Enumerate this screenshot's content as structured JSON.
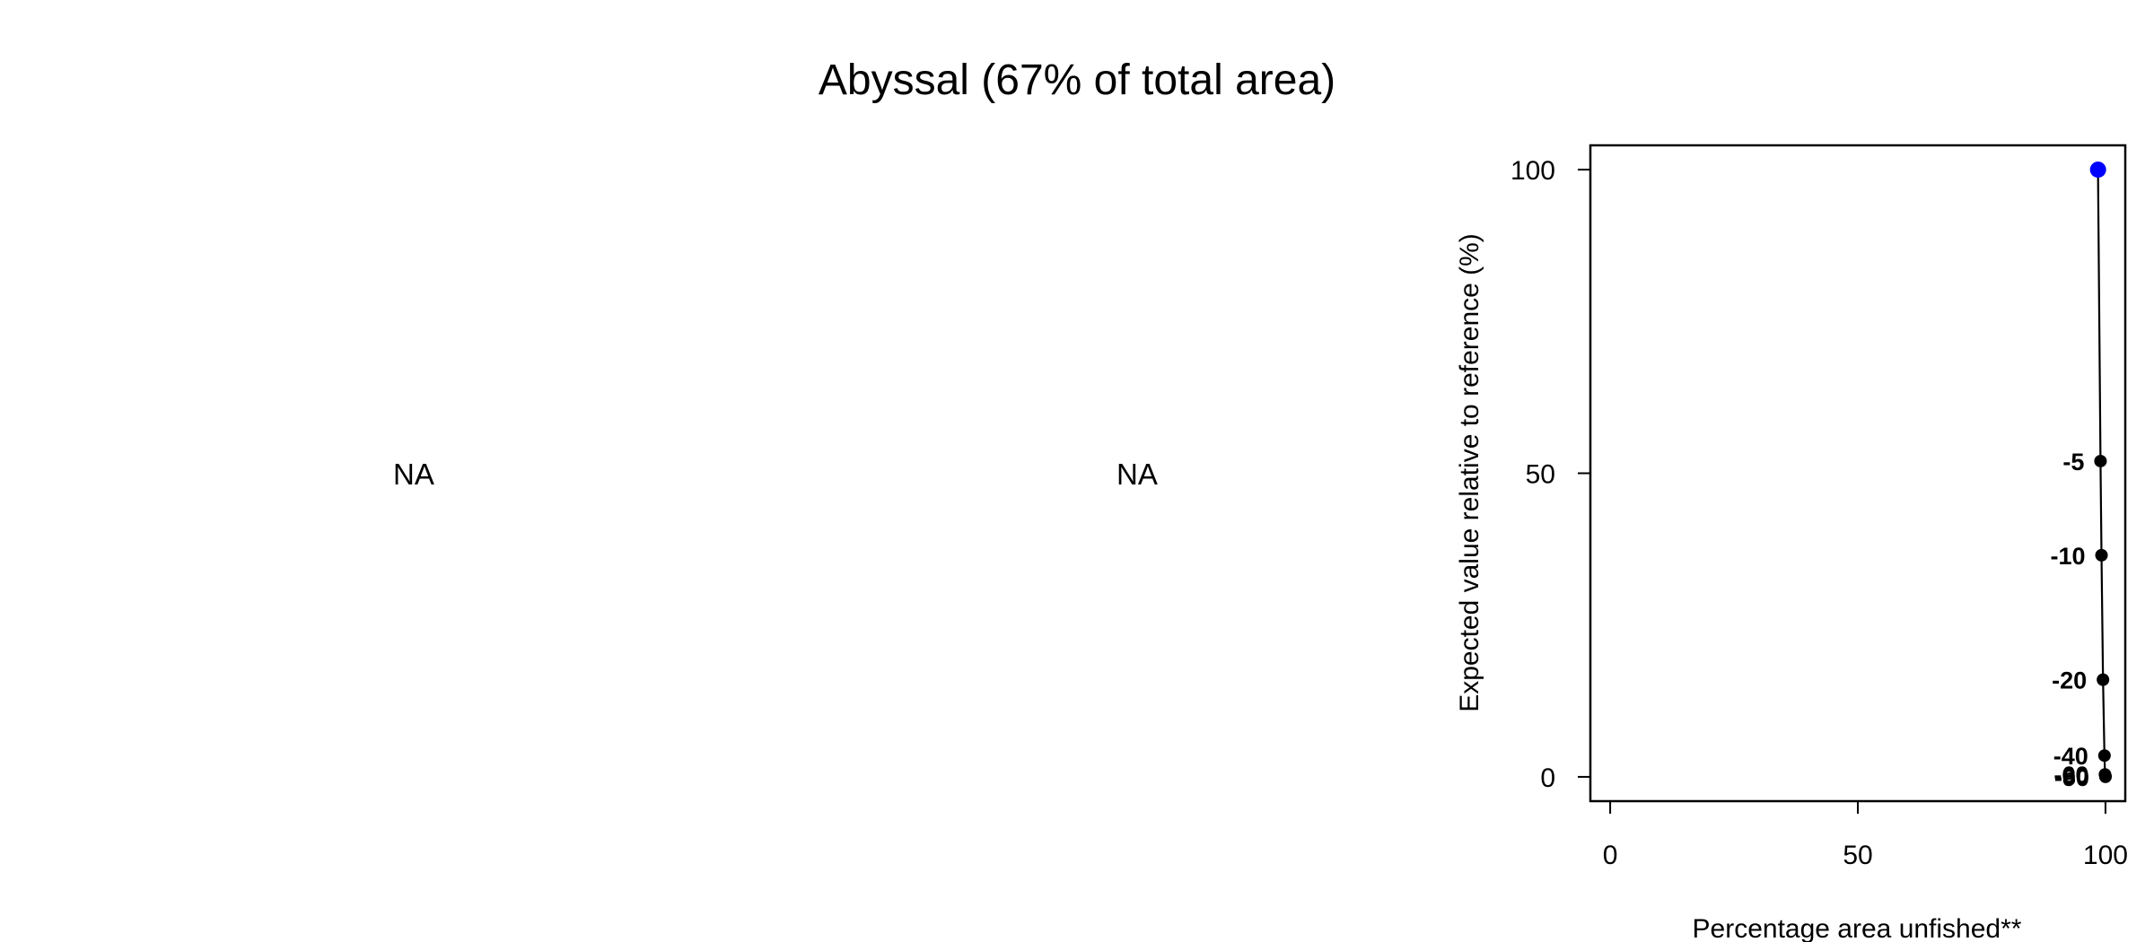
{
  "title": "Abyssal (67% of total area)",
  "panels": {
    "left_text": "NA",
    "middle_text": "NA"
  },
  "colors": {
    "highlight_point": "#0000ff",
    "points": "#000000",
    "line": "#000000"
  },
  "chart_data": {
    "type": "line",
    "title": "",
    "xlabel": "Percentage area unfished**",
    "ylabel": "Expected value relative to reference (%)",
    "xticks": [
      0,
      50,
      100
    ],
    "yticks": [
      0,
      50,
      100
    ],
    "xlim": [
      -4,
      104
    ],
    "ylim": [
      -4,
      104
    ],
    "grid": false,
    "series": [
      {
        "points": [
          {
            "x": 98.5,
            "y": 100,
            "label": ""
          },
          {
            "x": 99.0,
            "y": 52,
            "label": "-5"
          },
          {
            "x": 99.2,
            "y": 36.5,
            "label": "-10"
          },
          {
            "x": 99.5,
            "y": 16,
            "label": "-20"
          },
          {
            "x": 99.8,
            "y": 3.5,
            "label": "-40"
          },
          {
            "x": 99.9,
            "y": 0.4,
            "label": "-60"
          },
          {
            "x": 100,
            "y": 0.1,
            "label": "-80"
          },
          {
            "x": 100,
            "y": 0,
            "label": "-90"
          }
        ]
      }
    ]
  }
}
